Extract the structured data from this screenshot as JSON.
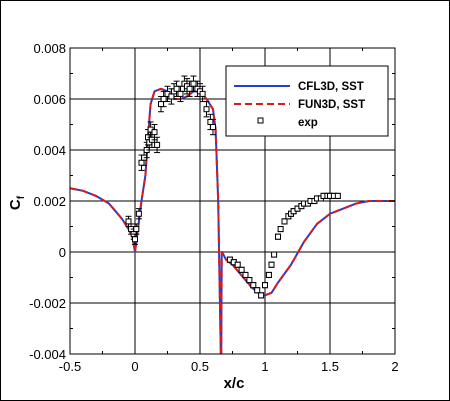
{
  "chart_data": {
    "type": "line",
    "title": "",
    "xlabel": "x/c",
    "ylabel": "C",
    "ylabel_subscript": "f",
    "xlim": [
      -0.5,
      2
    ],
    "ylim": [
      -0.004,
      0.008
    ],
    "x_ticks": [
      -0.5,
      0,
      0.5,
      1,
      1.5,
      2
    ],
    "x_tick_labels": [
      "-0.5",
      "0",
      "0.5",
      "1",
      "1.5",
      "2"
    ],
    "y_ticks": [
      -0.004,
      -0.002,
      0,
      0.002,
      0.004,
      0.006,
      0.008
    ],
    "y_tick_labels": [
      "-0.004",
      "-0.002",
      "0",
      "0.002",
      "0.004",
      "0.006",
      "0.008"
    ],
    "grid": true,
    "legend_position": "top-right",
    "series": [
      {
        "name": "CFL3D, SST",
        "style": "solid",
        "color": "#1f3fd6",
        "x": [
          -0.5,
          -0.4,
          -0.3,
          -0.2,
          -0.15,
          -0.1,
          -0.05,
          -0.02,
          0.0,
          0.02,
          0.05,
          0.08,
          0.1,
          0.12,
          0.15,
          0.2,
          0.25,
          0.3,
          0.35,
          0.4,
          0.45,
          0.5,
          0.55,
          0.6,
          0.62,
          0.64,
          0.65,
          0.66,
          0.663,
          0.667,
          0.67,
          0.68,
          0.7,
          0.75,
          0.8,
          0.85,
          0.9,
          0.95,
          1.0,
          1.05,
          1.1,
          1.2,
          1.3,
          1.4,
          1.5,
          1.6,
          1.7,
          1.8,
          1.9,
          2.0
        ],
        "values": [
          0.0025,
          0.0024,
          0.0022,
          0.0019,
          0.0016,
          0.0013,
          0.0009,
          0.0006,
          0.0,
          0.0008,
          0.002,
          0.003,
          0.0045,
          0.0058,
          0.0063,
          0.0064,
          0.0063,
          0.006,
          0.006,
          0.0061,
          0.0063,
          0.0063,
          0.006,
          0.0056,
          0.0048,
          0.002,
          -0.001,
          -0.004,
          -0.0045,
          -0.0001,
          0.0,
          -0.0001,
          -0.0003,
          -0.0005,
          -0.0008,
          -0.0011,
          -0.0014,
          -0.0016,
          -0.0017,
          -0.0016,
          -0.0012,
          -0.0005,
          0.0004,
          0.0011,
          0.0015,
          0.0017,
          0.0019,
          0.002,
          0.002,
          0.002
        ]
      },
      {
        "name": "FUN3D, SST",
        "style": "dashed",
        "color": "#d81b1b",
        "x": [
          -0.5,
          -0.4,
          -0.3,
          -0.2,
          -0.15,
          -0.1,
          -0.05,
          -0.02,
          0.0,
          0.02,
          0.05,
          0.08,
          0.1,
          0.12,
          0.15,
          0.2,
          0.25,
          0.3,
          0.35,
          0.4,
          0.45,
          0.5,
          0.55,
          0.6,
          0.62,
          0.64,
          0.65,
          0.66,
          0.663,
          0.667,
          0.67,
          0.68,
          0.7,
          0.75,
          0.8,
          0.85,
          0.9,
          0.95,
          1.0,
          1.05,
          1.1,
          1.2,
          1.3,
          1.4,
          1.5,
          1.6,
          1.7,
          1.8,
          1.9,
          2.0
        ],
        "values": [
          0.0025,
          0.0024,
          0.0022,
          0.0019,
          0.0016,
          0.0013,
          0.0009,
          0.0006,
          0.0,
          0.0008,
          0.002,
          0.003,
          0.0045,
          0.0058,
          0.0063,
          0.0064,
          0.0063,
          0.006,
          0.006,
          0.0061,
          0.0063,
          0.0063,
          0.006,
          0.0056,
          0.0048,
          0.002,
          -0.001,
          -0.004,
          -0.0045,
          -0.0001,
          0.0,
          -0.0001,
          -0.0003,
          -0.0005,
          -0.0008,
          -0.0011,
          -0.0014,
          -0.0016,
          -0.0017,
          -0.0016,
          -0.0012,
          -0.0005,
          0.0004,
          0.0011,
          0.0015,
          0.0017,
          0.0019,
          0.002,
          0.002,
          0.002
        ]
      },
      {
        "name": "exp",
        "style": "markers",
        "marker": "open-square",
        "x": [
          -0.05,
          -0.03,
          -0.01,
          0.0,
          0.01,
          0.03,
          0.05,
          0.07,
          0.09,
          0.1,
          0.11,
          0.12,
          0.13,
          0.15,
          0.17,
          0.2,
          0.22,
          0.25,
          0.28,
          0.3,
          0.32,
          0.35,
          0.38,
          0.4,
          0.42,
          0.45,
          0.48,
          0.5,
          0.52,
          0.55,
          0.58,
          0.6,
          0.73,
          0.76,
          0.79,
          0.82,
          0.85,
          0.88,
          0.91,
          0.94,
          0.97,
          1.0,
          1.03,
          1.05,
          1.07,
          1.1,
          1.12,
          1.15,
          1.18,
          1.2,
          1.22,
          1.25,
          1.28,
          1.3,
          1.33,
          1.35,
          1.38,
          1.4,
          1.43,
          1.45,
          1.48,
          1.5,
          1.53,
          1.56
        ],
        "values": [
          0.0012,
          0.0009,
          0.0007,
          0.0005,
          0.0009,
          0.0015,
          0.0035,
          0.0037,
          0.004,
          0.0045,
          0.0043,
          0.0048,
          0.0044,
          0.0047,
          0.0042,
          0.0058,
          0.006,
          0.0062,
          0.0061,
          0.0063,
          0.0064,
          0.0062,
          0.0066,
          0.0065,
          0.0064,
          0.0066,
          0.0064,
          0.0063,
          0.0062,
          0.0056,
          0.0051,
          0.0049,
          -0.0003,
          -0.0004,
          -0.0005,
          -0.0007,
          -0.0009,
          -0.0011,
          -0.0013,
          -0.0015,
          -0.0017,
          -0.0013,
          -0.0009,
          -0.0005,
          -0.0001,
          0.0006,
          0.0009,
          0.0012,
          0.0014,
          0.0015,
          0.0016,
          0.0017,
          0.0018,
          0.0019,
          0.0019,
          0.002,
          0.002,
          0.0021,
          0.0021,
          0.0022,
          0.0022,
          0.0022,
          0.0022,
          0.0022
        ],
        "error": [
          0.0002,
          0.0002,
          0.0002,
          0.0002,
          0.0002,
          0.0002,
          0.0003,
          0.0003,
          0.0003,
          0.0003,
          0.0003,
          0.0003,
          0.0003,
          0.0003,
          0.0003,
          0.0003,
          0.0003,
          0.0003,
          0.0003,
          0.0003,
          0.0003,
          0.0003,
          0.0003,
          0.0003,
          0.0003,
          0.0003,
          0.0003,
          0.0003,
          0.0003,
          0.0003,
          0.0003,
          0.0003,
          0.0001,
          0.0001,
          0.0001,
          0.0001,
          0.0001,
          0.0001,
          0.0001,
          0.0001,
          0.0001,
          0.0001,
          0.0001,
          0.0001,
          0.0001,
          0.0001,
          0.0001,
          0.0001,
          0.0001,
          0.0001,
          0.0001,
          0.0001,
          0.0001,
          0.0001,
          0.0001,
          0.0001,
          0.0001,
          0.0001,
          0.0001,
          0.0001,
          0.0001,
          0.0001,
          0.0001,
          0.0001
        ]
      }
    ]
  }
}
